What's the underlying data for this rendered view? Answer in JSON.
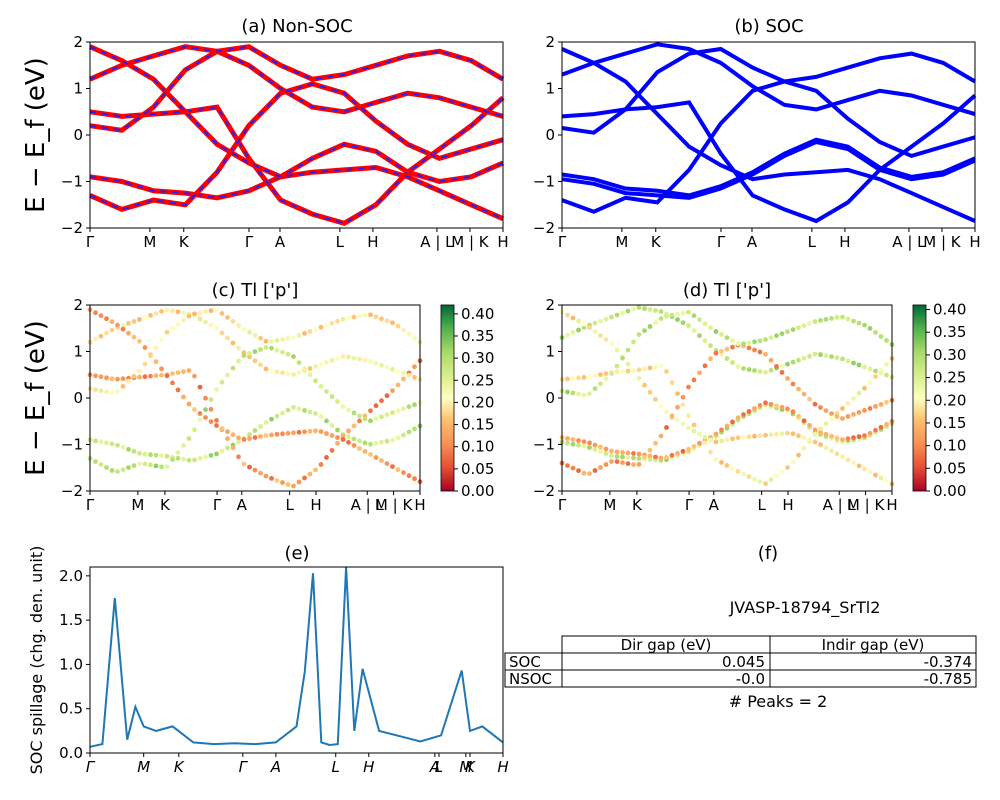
{
  "figure": {
    "panel_a_title": "(a) Non-SOC",
    "panel_b_title": "(b) SOC",
    "panel_c_title": "(c)  Tl ['p']",
    "panel_d_title": "(d) Tl ['p']",
    "panel_e_title": "(e)",
    "panel_f_title": "(f)",
    "band_ylabel": "E − E_f (eV)",
    "spillage_ylabel": "SOC spillage (chg. den. unit)",
    "material": "JVASP-18794_SrTl2",
    "peaks_text": "# Peaks = 2",
    "kpath_labels": [
      "Γ",
      "M",
      "K",
      "Γ",
      "A",
      "L",
      "H",
      "A | L",
      "M | K",
      "H"
    ],
    "spillage_kpath_labels": [
      "Γ",
      "M",
      "K",
      "Γ",
      "A",
      "L",
      "H",
      "A",
      "L",
      "M",
      "K",
      "H"
    ],
    "band_yticks": [
      "−2",
      "−1",
      "0",
      "1",
      "2"
    ],
    "spillage_yticks": [
      "0.0",
      "0.5",
      "1.0",
      "1.5",
      "2.0"
    ],
    "colorbar_ticks": [
      "0.00",
      "0.05",
      "0.10",
      "0.15",
      "0.20",
      "0.25",
      "0.30",
      "0.35",
      "0.40"
    ],
    "colors": {
      "nonsoc_line": "#ff0000",
      "nonsoc_dash": "#2222ff",
      "soc_line": "#0000ff",
      "spillage_line": "#1f77b4"
    }
  },
  "table": {
    "headers": [
      "",
      "Dir gap (eV)",
      "Indir gap (eV)"
    ],
    "rows": [
      [
        "SOC",
        "0.045",
        "-0.374"
      ],
      [
        "NSOC",
        "-0.0",
        "-0.785"
      ]
    ]
  },
  "chart_data": [
    {
      "type": "line",
      "title": "(a) Non-SOC",
      "ylabel": "E − E_f (eV)",
      "ylim": [
        -2,
        2
      ],
      "x_ticks": [
        "Γ",
        "M",
        "K",
        "Γ",
        "A",
        "L",
        "H",
        "A | L",
        "M | K",
        "H"
      ],
      "series": [
        {
          "values": [
            -0.9,
            -1.0,
            -1.2,
            -1.25,
            -1.35,
            -1.2,
            -0.9,
            -0.5,
            -0.2,
            -0.35,
            -0.8,
            -1.0,
            -0.9,
            -0.6
          ]
        },
        {
          "values": [
            0.5,
            0.4,
            0.45,
            0.5,
            0.6,
            -0.5,
            -1.4,
            -1.7,
            -1.9,
            -1.5,
            -0.8,
            -0.3,
            0.2,
            0.8
          ]
        },
        {
          "values": [
            1.2,
            1.5,
            1.7,
            1.9,
            1.8,
            1.5,
            1.0,
            0.6,
            0.5,
            0.7,
            0.9,
            0.8,
            0.6,
            0.4
          ]
        },
        {
          "values": [
            -1.3,
            -1.6,
            -1.4,
            -1.5,
            -0.8,
            0.2,
            0.9,
            1.1,
            0.9,
            0.3,
            -0.2,
            -0.5,
            -0.3,
            -0.1
          ]
        },
        {
          "values": [
            1.9,
            1.6,
            1.2,
            0.5,
            -0.2,
            -0.6,
            -0.9,
            -0.8,
            -0.75,
            -0.7,
            -0.9,
            -1.2,
            -1.5,
            -1.8
          ]
        },
        {
          "values": [
            0.2,
            0.1,
            0.6,
            1.4,
            1.8,
            1.9,
            1.5,
            1.2,
            1.3,
            1.5,
            1.7,
            1.8,
            1.6,
            1.2
          ]
        }
      ]
    },
    {
      "type": "line",
      "title": "(b) SOC",
      "ylim": [
        -2,
        2
      ],
      "x_ticks": [
        "Γ",
        "M",
        "K",
        "Γ",
        "A",
        "L",
        "H",
        "A | L",
        "M | K",
        "H"
      ],
      "series": [
        {
          "values": [
            -0.95,
            -1.05,
            -1.25,
            -1.3,
            -1.35,
            -1.15,
            -0.85,
            -0.45,
            -0.15,
            -0.3,
            -0.75,
            -0.95,
            -0.85,
            -0.55
          ]
        },
        {
          "values": [
            -0.85,
            -0.95,
            -1.15,
            -1.2,
            -1.3,
            -1.1,
            -0.8,
            -0.4,
            -0.1,
            -0.25,
            -0.7,
            -0.9,
            -0.8,
            -0.5
          ]
        },
        {
          "values": [
            0.4,
            0.45,
            0.55,
            0.6,
            0.7,
            -0.4,
            -1.3,
            -1.6,
            -1.85,
            -1.45,
            -0.75,
            -0.25,
            0.25,
            0.85
          ]
        },
        {
          "values": [
            1.3,
            1.55,
            1.75,
            1.95,
            1.85,
            1.55,
            1.05,
            0.65,
            0.55,
            0.75,
            0.95,
            0.85,
            0.65,
            0.45
          ]
        },
        {
          "values": [
            -1.4,
            -1.65,
            -1.35,
            -1.45,
            -0.75,
            0.25,
            0.95,
            1.15,
            0.95,
            0.35,
            -0.15,
            -0.45,
            -0.25,
            -0.05
          ]
        },
        {
          "values": [
            1.85,
            1.55,
            1.15,
            0.45,
            -0.25,
            -0.65,
            -0.95,
            -0.85,
            -0.8,
            -0.75,
            -0.95,
            -1.25,
            -1.55,
            -1.85
          ]
        },
        {
          "values": [
            0.15,
            0.05,
            0.55,
            1.35,
            1.75,
            1.85,
            1.45,
            1.15,
            1.25,
            1.45,
            1.65,
            1.75,
            1.55,
            1.15
          ]
        }
      ]
    },
    {
      "type": "scatter",
      "title": "(c)  Tl ['p']",
      "ylabel": "E − E_f (eV)",
      "ylim": [
        -2,
        2
      ],
      "colorbar_range": [
        0.0,
        0.42
      ],
      "x_ticks": [
        "Γ",
        "M",
        "K",
        "Γ",
        "A",
        "L",
        "H",
        "A | L",
        "M | K",
        "H"
      ]
    },
    {
      "type": "scatter",
      "title": "(d) Tl ['p']",
      "ylim": [
        -2,
        2
      ],
      "colorbar_range": [
        0.0,
        0.41
      ],
      "x_ticks": [
        "Γ",
        "M",
        "K",
        "Γ",
        "A",
        "L",
        "H",
        "A | L",
        "M | K",
        "H"
      ]
    },
    {
      "type": "line",
      "title": "(e)",
      "ylabel": "SOC spillage (chg. den. unit)",
      "ylim": [
        0,
        2.1
      ],
      "x_ticks": [
        "Γ",
        "M",
        "K",
        "Γ",
        "A",
        "L",
        "H",
        "A",
        "L",
        "M",
        "K",
        "H"
      ],
      "series": [
        {
          "x": [
            0,
            0.03,
            0.06,
            0.09,
            0.11,
            0.13,
            0.16,
            0.2,
            0.25,
            0.3,
            0.35,
            0.4,
            0.45,
            0.5,
            0.52,
            0.54,
            0.56,
            0.58,
            0.6,
            0.62,
            0.64,
            0.66,
            0.7,
            0.8,
            0.85,
            0.9,
            0.92,
            0.95,
            1.0
          ],
          "values": [
            0.07,
            0.1,
            1.75,
            0.15,
            0.52,
            0.3,
            0.25,
            0.3,
            0.12,
            0.1,
            0.11,
            0.1,
            0.12,
            0.3,
            0.92,
            2.03,
            0.12,
            0.09,
            0.1,
            2.1,
            0.25,
            0.95,
            0.25,
            0.13,
            0.2,
            0.93,
            0.25,
            0.3,
            0.12
          ]
        }
      ]
    }
  ]
}
